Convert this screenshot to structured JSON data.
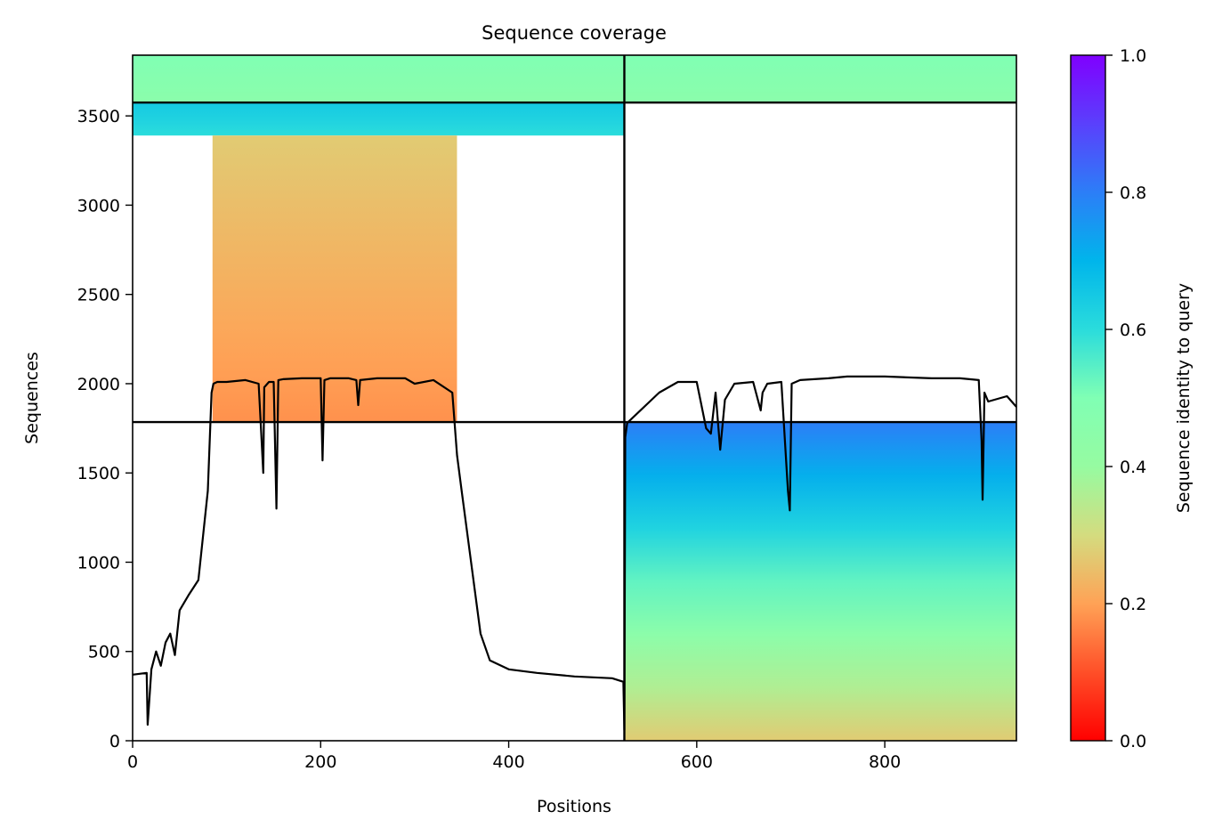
{
  "chart_data": {
    "type": "heatmap",
    "title": "Sequence coverage",
    "xlabel": "Positions",
    "ylabel": "Sequences",
    "xlim": [
      0,
      940
    ],
    "ylim": [
      0,
      3840
    ],
    "xticks": [
      0,
      200,
      400,
      600,
      800
    ],
    "yticks": [
      0,
      500,
      1000,
      1500,
      2000,
      2500,
      3000,
      3500
    ],
    "colorbar": {
      "label": "Sequence identity to query",
      "range": [
        0,
        1
      ],
      "ticks": [
        0.0,
        0.2,
        0.4,
        0.6,
        0.8,
        1.0
      ],
      "colormap": "rainbow_r"
    },
    "chain_boundary_x": 523,
    "block_boundaries_y": [
      1785,
      3575
    ],
    "blocks": [
      {
        "name": "paired-top",
        "y_range": [
          3575,
          3840
        ],
        "segments": [
          {
            "x_range": [
              0,
              523
            ],
            "identity_bottom": 0.45,
            "identity_top": 0.5
          },
          {
            "x_range": [
              523,
              940
            ],
            "identity_bottom": 0.45,
            "identity_top": 0.5
          }
        ]
      },
      {
        "name": "chain-A-cyan",
        "y_range": [
          3390,
          3575
        ],
        "segments": [
          {
            "x_range": [
              0,
              523
            ],
            "identity_bottom": 0.6,
            "identity_top": 0.65
          }
        ]
      },
      {
        "name": "chain-A-unpaired",
        "y_range": [
          1785,
          3390
        ],
        "segments": [
          {
            "x_range": [
              85,
              345
            ],
            "identity_bottom": 0.18,
            "identity_top": 0.27
          }
        ]
      },
      {
        "name": "chain-B-unpaired",
        "y_range": [
          0,
          1785
        ],
        "segments": [
          {
            "x_range": [
              523,
              940
            ],
            "identity_bottom": 0.27,
            "identity_top": 0.8
          }
        ]
      }
    ],
    "coverage_line": {
      "x": [
        0,
        15,
        16,
        20,
        25,
        30,
        35,
        40,
        45,
        50,
        60,
        70,
        80,
        84,
        86,
        90,
        100,
        120,
        134,
        136,
        139,
        140,
        145,
        150,
        153,
        155,
        160,
        180,
        200,
        202,
        204,
        210,
        230,
        238,
        240,
        242,
        260,
        290,
        300,
        320,
        340,
        345,
        350,
        360,
        370,
        380,
        400,
        430,
        470,
        510,
        522,
        523,
        524,
        526,
        530,
        560,
        580,
        600,
        610,
        615,
        620,
        625,
        630,
        640,
        660,
        668,
        670,
        675,
        690,
        697,
        699,
        701,
        710,
        740,
        760,
        800,
        850,
        880,
        900,
        903,
        904,
        906,
        910,
        930,
        940
      ],
      "y": [
        370,
        380,
        90,
        400,
        500,
        420,
        550,
        600,
        480,
        730,
        820,
        900,
        1400,
        1950,
        2000,
        2010,
        2010,
        2020,
        2000,
        1800,
        1500,
        1980,
        2010,
        2010,
        1300,
        2020,
        2025,
        2030,
        2030,
        1570,
        2020,
        2030,
        2030,
        2020,
        1880,
        2020,
        2030,
        2030,
        2000,
        2020,
        1950,
        1600,
        1400,
        1000,
        600,
        450,
        400,
        380,
        360,
        350,
        330,
        60,
        1700,
        1780,
        1800,
        1950,
        2010,
        2010,
        1750,
        1720,
        1950,
        1630,
        1910,
        2000,
        2010,
        1850,
        1950,
        2000,
        2010,
        1400,
        1290,
        2000,
        2020,
        2030,
        2040,
        2040,
        2030,
        2030,
        2020,
        1680,
        1350,
        1950,
        1900,
        1930,
        1870
      ]
    }
  }
}
